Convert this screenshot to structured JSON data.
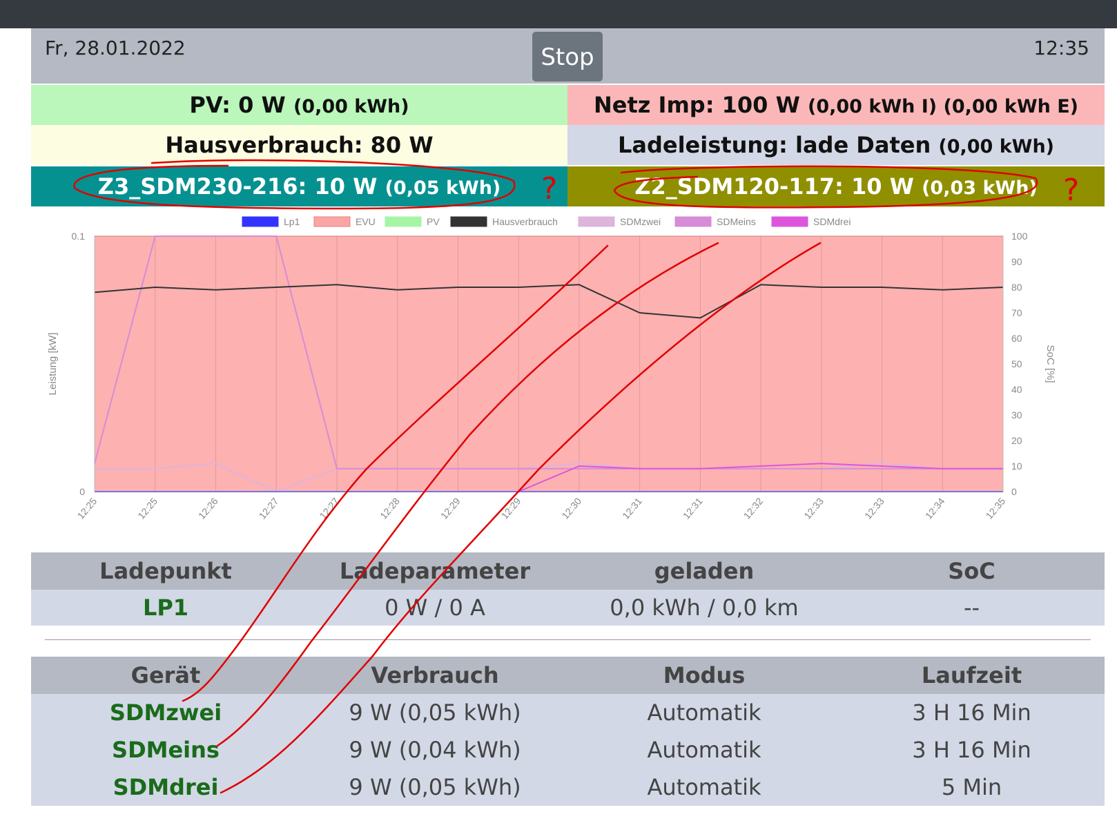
{
  "header": {
    "date": "Fr, 28.01.2022",
    "time": "12:35",
    "stop_label": "Stop"
  },
  "status": {
    "pv_main": "PV: 0 W",
    "pv_sub": "(0,00 kWh)",
    "netz_main": "Netz Imp: 100 W",
    "netz_sub": "(0,00 kWh I) (0,00 kWh E)",
    "haus_main": "Hausverbrauch: 80 W",
    "lade_main": "Ladeleistung: lade Daten",
    "lade_sub": "(0,00 kWh)",
    "z3_main": "Z3_SDM230-216: 10 W",
    "z3_sub": "(0,05 kWh)",
    "z2_main": "Z2_SDM120-117: 10 W",
    "z2_sub": "(0,03 kWh)"
  },
  "colors": {
    "pv": "#bbf7bb",
    "netz": "#fbb7b7",
    "haus": "#fcfde1",
    "lade": "#d2d8e6",
    "z3": "#069191",
    "z2": "#8f8f00",
    "annotation": "#e00000"
  },
  "chart_data": {
    "type": "line",
    "ylabel": "Leistung [kW]",
    "y2label": "SoC [%]",
    "ylim": [
      0,
      0.1
    ],
    "y_ticks": [
      "0",
      "0.1"
    ],
    "y2lim": [
      0,
      100
    ],
    "y2_ticks": [
      "0",
      "10",
      "20",
      "30",
      "40",
      "50",
      "60",
      "70",
      "80",
      "90",
      "100"
    ],
    "x_ticks": [
      "12:25",
      "12:25",
      "12:26",
      "12:27",
      "12:27",
      "12:28",
      "12:29",
      "12:29",
      "12:30",
      "12:31",
      "12:31",
      "12:32",
      "12:33",
      "12:33",
      "12:34",
      "12:35"
    ],
    "legend": [
      "Lp1",
      "EVU",
      "PV",
      "Hausverbrauch",
      "SDMzwei",
      "SDMeins",
      "SDMdrei"
    ],
    "legend_colors": [
      "#3333ff",
      "#fba5a5",
      "#a6f5a6",
      "#333333",
      "#dcb4dc",
      "#d68cd6",
      "#dd55dd"
    ],
    "series": [
      {
        "name": "Lp1",
        "values": [
          0,
          0,
          0,
          0,
          0,
          0,
          0,
          0,
          0,
          0,
          0,
          0,
          0,
          0,
          0,
          0
        ]
      },
      {
        "name": "EVU",
        "values": [
          0.1,
          0.1,
          0.1,
          0.1,
          0.1,
          0.1,
          0.1,
          0.1,
          0.1,
          0.1,
          0.1,
          0.1,
          0.1,
          0.1,
          0.1,
          0.1
        ]
      },
      {
        "name": "PV",
        "values": [
          0,
          0,
          0,
          0,
          0,
          0,
          0,
          0,
          0,
          0,
          0,
          0,
          0,
          0,
          0,
          0
        ]
      },
      {
        "name": "Hausverbrauch",
        "values": [
          0.078,
          0.08,
          0.079,
          0.08,
          0.081,
          0.079,
          0.08,
          0.08,
          0.081,
          0.07,
          0.068,
          0.081,
          0.08,
          0.08,
          0.079,
          0.08
        ]
      },
      {
        "name": "SDMzwei",
        "values": [
          0.009,
          0.009,
          0.011,
          0,
          0.009,
          0.009,
          0.009,
          0.009,
          0.011,
          0.009,
          0.009,
          0.009,
          0.009,
          0.011,
          0.009,
          0.009
        ]
      },
      {
        "name": "SDMeins",
        "values": [
          0.011,
          0.1,
          0.1,
          0.1,
          0.009,
          0.009,
          0.009,
          0.009,
          0.009,
          0.009,
          0.009,
          0.009,
          0.009,
          0.009,
          0.009,
          0.009
        ]
      },
      {
        "name": "SDMdrei",
        "values": [
          0,
          0,
          0,
          0,
          0,
          0,
          0,
          0,
          0.01,
          0.009,
          0.009,
          0.01,
          0.011,
          0.01,
          0.009,
          0.009
        ]
      }
    ],
    "grid": true,
    "legend_position": "top"
  },
  "ladepunkt_table": {
    "headers": [
      "Ladepunkt",
      "Ladeparameter",
      "geladen",
      "SoC"
    ],
    "rows": [
      [
        "LP1",
        "0 W / 0 A",
        "0,0 kWh / 0,0 km",
        "--"
      ]
    ]
  },
  "geraet_table": {
    "headers": [
      "Gerät",
      "Verbrauch",
      "Modus",
      "Laufzeit"
    ],
    "rows": [
      [
        "SDMzwei",
        "9 W (0,05 kWh)",
        "Automatik",
        "3 H 16 Min"
      ],
      [
        "SDMeins",
        "9 W (0,04 kWh)",
        "Automatik",
        "3 H 16 Min"
      ],
      [
        "SDMdrei",
        "9 W (0,05 kWh)",
        "Automatik",
        "5 Min"
      ]
    ]
  }
}
